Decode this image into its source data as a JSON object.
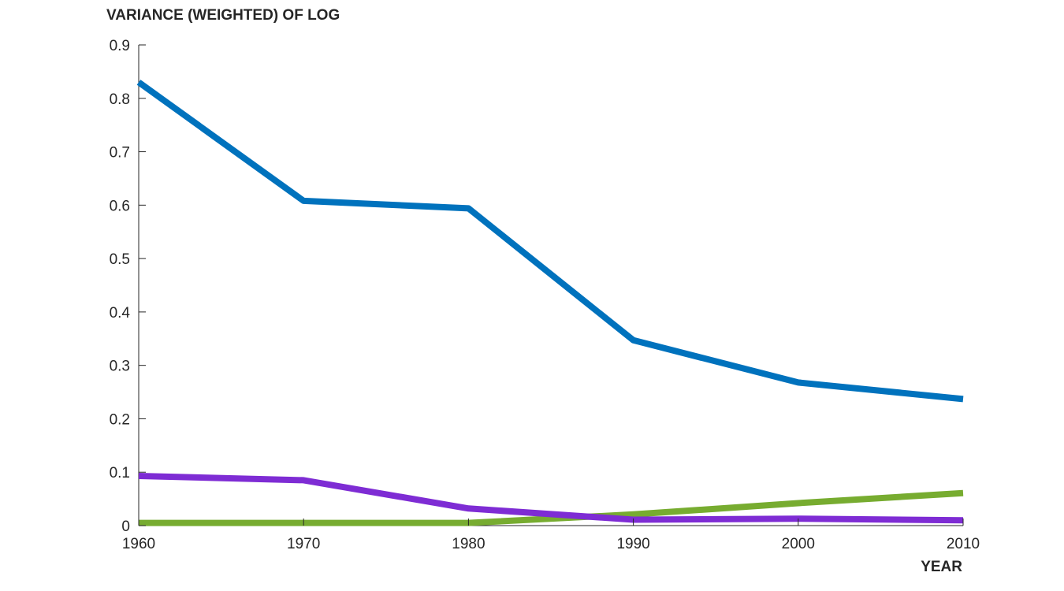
{
  "chart_data": {
    "type": "line",
    "ylabel": "VARIANCE (WEIGHTED) OF LOG",
    "xlabel": "YEAR",
    "x": [
      1960,
      1970,
      1980,
      1990,
      2000,
      2010
    ],
    "xlim": [
      1960,
      2010
    ],
    "ylim": [
      0,
      0.9
    ],
    "x_ticks": [
      "1960",
      "1970",
      "1980",
      "1990",
      "2000",
      "2010"
    ],
    "y_ticks": [
      "0",
      "0.1",
      "0.2",
      "0.3",
      "0.4",
      "0.5",
      "0.6",
      "0.7",
      "0.8",
      "0.9"
    ],
    "grid": false,
    "series": [
      {
        "color": "#0072BD",
        "values": [
          0.83,
          0.608,
          0.594,
          0.347,
          0.268,
          0.237
        ]
      },
      {
        "color": "#77AC30",
        "values": [
          0.005,
          0.005,
          0.005,
          0.021,
          0.042,
          0.061
        ]
      },
      {
        "color": "#7E2CD4",
        "values": [
          0.093,
          0.085,
          0.032,
          0.011,
          0.013,
          0.01
        ]
      }
    ]
  }
}
